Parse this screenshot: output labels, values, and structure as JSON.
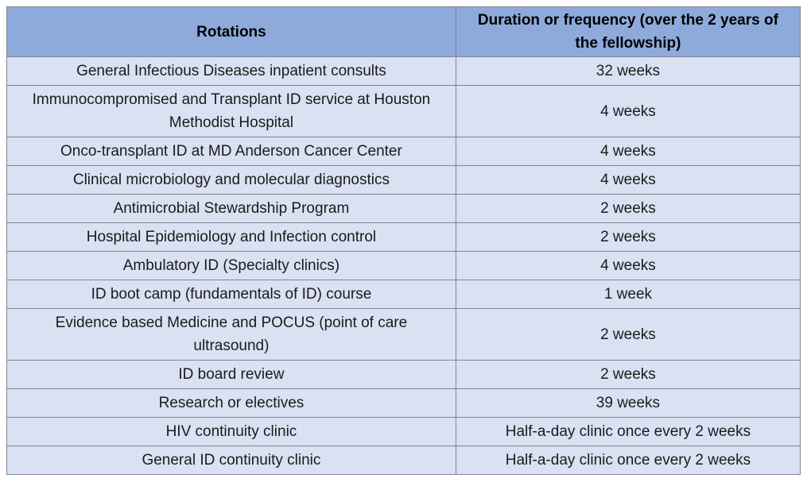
{
  "table": {
    "columns": [
      {
        "label": "Rotations"
      },
      {
        "label": "Duration or frequency (over the 2 years of the fellowship)"
      }
    ],
    "rows": [
      {
        "rotation": "General Infectious Diseases inpatient consults",
        "duration": "32 weeks"
      },
      {
        "rotation": "Immunocompromised and Transplant ID service at Houston Methodist Hospital",
        "duration": "4 weeks"
      },
      {
        "rotation": "Onco-transplant ID at MD Anderson Cancer Center",
        "duration": "4 weeks"
      },
      {
        "rotation": "Clinical microbiology and molecular diagnostics",
        "duration": "4 weeks"
      },
      {
        "rotation": "Antimicrobial Stewardship Program",
        "duration": "2 weeks"
      },
      {
        "rotation": "Hospital Epidemiology and Infection control",
        "duration": "2 weeks"
      },
      {
        "rotation": "Ambulatory ID (Specialty clinics)",
        "duration": "4 weeks"
      },
      {
        "rotation": "ID boot camp (fundamentals of ID) course",
        "duration": "1 week"
      },
      {
        "rotation": "Evidence based Medicine and POCUS (point of care ultrasound)",
        "duration": "2 weeks"
      },
      {
        "rotation": "ID board review",
        "duration": "2 weeks"
      },
      {
        "rotation": "Research or electives",
        "duration": "39 weeks"
      },
      {
        "rotation": "HIV continuity clinic",
        "duration": "Half-a-day clinic once every 2 weeks"
      },
      {
        "rotation": "General ID continuity clinic",
        "duration": "Half-a-day clinic once every 2 weeks"
      }
    ],
    "colors": {
      "header_bg": "#8EAADB",
      "row_bg": "#D9E1F2",
      "border": "#7D8493",
      "text": "#1B1B1B",
      "header_text": "#000000"
    }
  }
}
